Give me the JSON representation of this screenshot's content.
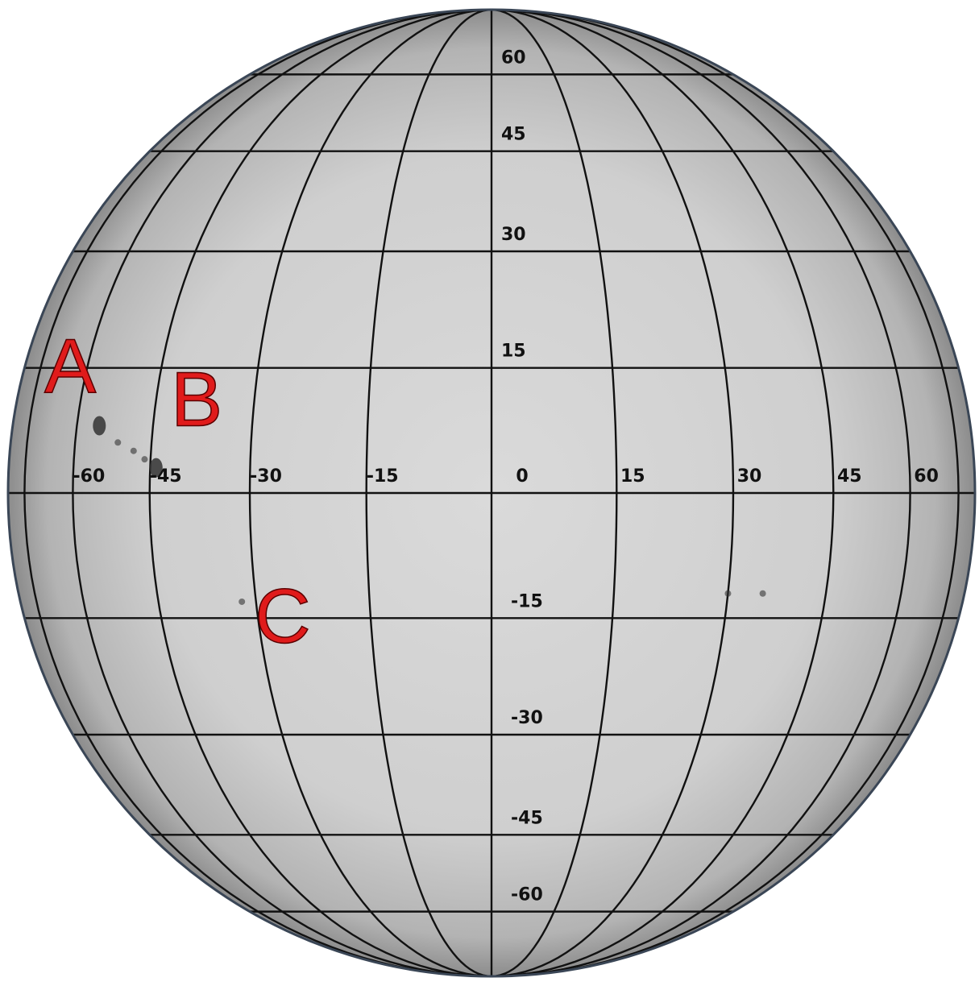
{
  "grid": {
    "latitudes": [
      60,
      45,
      30,
      15,
      0,
      -15,
      -30,
      -45,
      -60
    ],
    "longitudes": [
      -60,
      -45,
      -30,
      -15,
      0,
      15,
      30,
      45,
      60
    ],
    "latitude_labels": [
      "60",
      "45",
      "30",
      "15",
      "-15",
      "-30",
      "-45",
      "-60"
    ],
    "longitude_labels": [
      "-60",
      "-45",
      "-30",
      "-15",
      "0",
      "15",
      "30",
      "45",
      "60"
    ]
  },
  "markers": [
    {
      "label": "A",
      "lon": -63,
      "lat": 12
    },
    {
      "label": "B",
      "lon": -38,
      "lat": 8
    },
    {
      "label": "C",
      "lon": -27,
      "lat": -18
    }
  ],
  "sunspots": [
    {
      "lon": -55,
      "lat": 8
    },
    {
      "lon": -51,
      "lat": 6
    },
    {
      "lon": -48,
      "lat": 5
    },
    {
      "lon": -46,
      "lat": 4
    },
    {
      "lon": -44,
      "lat": 3
    },
    {
      "lon": -32,
      "lat": -13
    },
    {
      "lon": 30,
      "lat": -12
    },
    {
      "lon": 35,
      "lat": -12
    }
  ],
  "colors": {
    "disk": "#d4d4d4",
    "limb": "#8c8c8c",
    "outline": "#3a4656",
    "grid": "#111111",
    "marker": "#e01b1b"
  }
}
